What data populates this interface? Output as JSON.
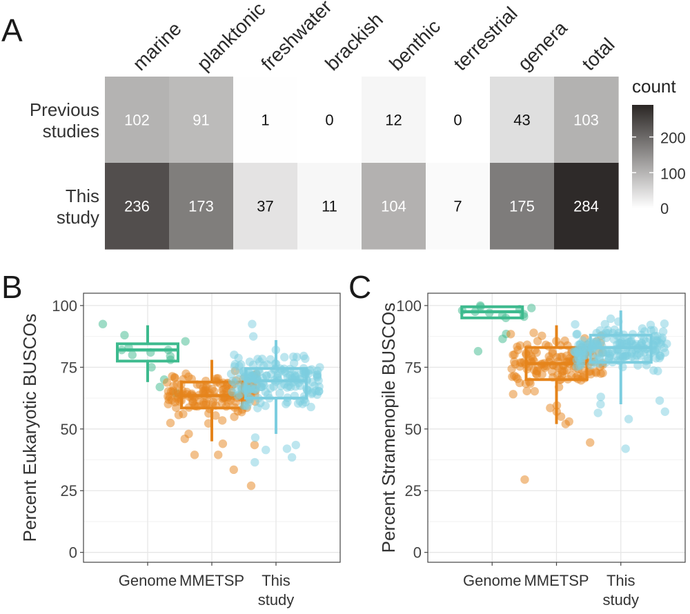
{
  "panels": {
    "A": "A",
    "B": "B",
    "C": "C"
  },
  "chart_data": [
    {
      "type": "heatmap",
      "panel": "A",
      "columns": [
        "marine",
        "planktonic",
        "freshwater",
        "brackish",
        "benthic",
        "terrestrial",
        "genera",
        "total"
      ],
      "rows": [
        {
          "label_lines": [
            "Previous",
            "studies"
          ],
          "values": [
            102,
            91,
            1,
            0,
            12,
            0,
            43,
            103
          ]
        },
        {
          "label_lines": [
            "This",
            "study"
          ],
          "values": [
            236,
            173,
            37,
            11,
            104,
            7,
            175,
            284
          ]
        }
      ],
      "legend": {
        "title": "count",
        "ticks": [
          0,
          100,
          200
        ],
        "max": 290
      },
      "colors": {
        "low": "#ffffff",
        "high": "#2a2624"
      }
    },
    {
      "type": "box",
      "panel": "B",
      "ylabel": "Percent Eukaryotic BUSCOs",
      "ylim": [
        -4,
        105
      ],
      "yticks": [
        0,
        25,
        50,
        75,
        100
      ],
      "categories": [
        {
          "lines": [
            "Genome"
          ]
        },
        {
          "lines": [
            "MMETSP"
          ]
        },
        {
          "lines": [
            "This",
            "study"
          ]
        }
      ],
      "groups": [
        {
          "name": "Genome",
          "color": "#3dba8e",
          "whisker_low": 69,
          "q1": 77.5,
          "median": 82,
          "q3": 84.5,
          "whisker_high": 92,
          "n_points": 14,
          "points": [
            92.5,
            85.5,
            83,
            82,
            82,
            81,
            80,
            79.5,
            78,
            75,
            70,
            67,
            64.5,
            88
          ]
        },
        {
          "name": "MMETSP",
          "color": "#e5841b",
          "whisker_low": 45,
          "q1": 58.5,
          "median": 63.5,
          "q3": 69,
          "whisker_high": 78,
          "n_points": 150,
          "points": [
            43.5,
            39.5,
            33.5,
            27,
            39.5,
            44,
            46,
            48
          ]
        },
        {
          "name": "This study",
          "color": "#7ccddf",
          "whisker_low": 48,
          "q1": 62.5,
          "median": 69.5,
          "q3": 74.5,
          "whisker_high": 86,
          "n_points": 180,
          "points": [
            92.5,
            87.5,
            41.5,
            38.5,
            43.5,
            42,
            36.5,
            46.5
          ]
        }
      ]
    },
    {
      "type": "box",
      "panel": "C",
      "ylabel": "Percent Stramenopile BUSCOs",
      "ylim": [
        -4,
        105
      ],
      "yticks": [
        0,
        25,
        50,
        75,
        100
      ],
      "categories": [
        {
          "lines": [
            "Genome"
          ]
        },
        {
          "lines": [
            "MMETSP"
          ]
        },
        {
          "lines": [
            "This",
            "study"
          ]
        }
      ],
      "groups": [
        {
          "name": "Genome",
          "color": "#3dba8e",
          "whisker_low": 95,
          "q1": 95,
          "median": 97.5,
          "q3": 99.5,
          "whisker_high": 100,
          "n_points": 14,
          "points": [
            100,
            99.5,
            99,
            98.5,
            98,
            97.5,
            97,
            96.5,
            96,
            95.5,
            95,
            88.5,
            86.5,
            81.5
          ]
        },
        {
          "name": "MMETSP",
          "color": "#e5841b",
          "whisker_low": 52,
          "q1": 70,
          "median": 76.5,
          "q3": 83,
          "whisker_high": 92,
          "n_points": 150,
          "points": [
            29.5,
            44.5,
            52,
            53,
            55,
            57,
            58.5,
            59.5
          ]
        },
        {
          "name": "This study",
          "color": "#7ccddf",
          "whisker_low": 60,
          "q1": 77,
          "median": 83,
          "q3": 88,
          "whisker_high": 98,
          "n_points": 180,
          "points": [
            42,
            56.5,
            54,
            57,
            60,
            61.5,
            63
          ]
        }
      ]
    }
  ]
}
